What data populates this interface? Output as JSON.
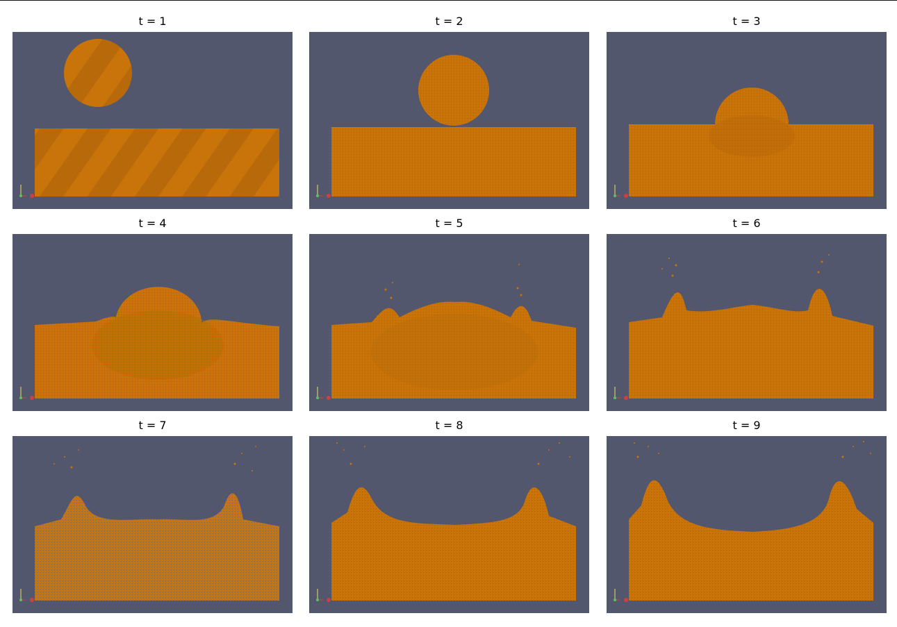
{
  "panels": [
    {
      "title": "t = 1"
    },
    {
      "title": "t = 2"
    },
    {
      "title": "t = 3"
    },
    {
      "title": "t = 4"
    },
    {
      "title": "t = 5"
    },
    {
      "title": "t = 6"
    },
    {
      "title": "t = 7"
    },
    {
      "title": "t = 8"
    },
    {
      "title": "t = 9"
    }
  ],
  "colors": {
    "background": "#ffffff",
    "viewport": "#52576e",
    "particles": "#c8740a",
    "particles_dark": "#a95f08"
  },
  "icons": [
    "orientation-axes-icon"
  ]
}
